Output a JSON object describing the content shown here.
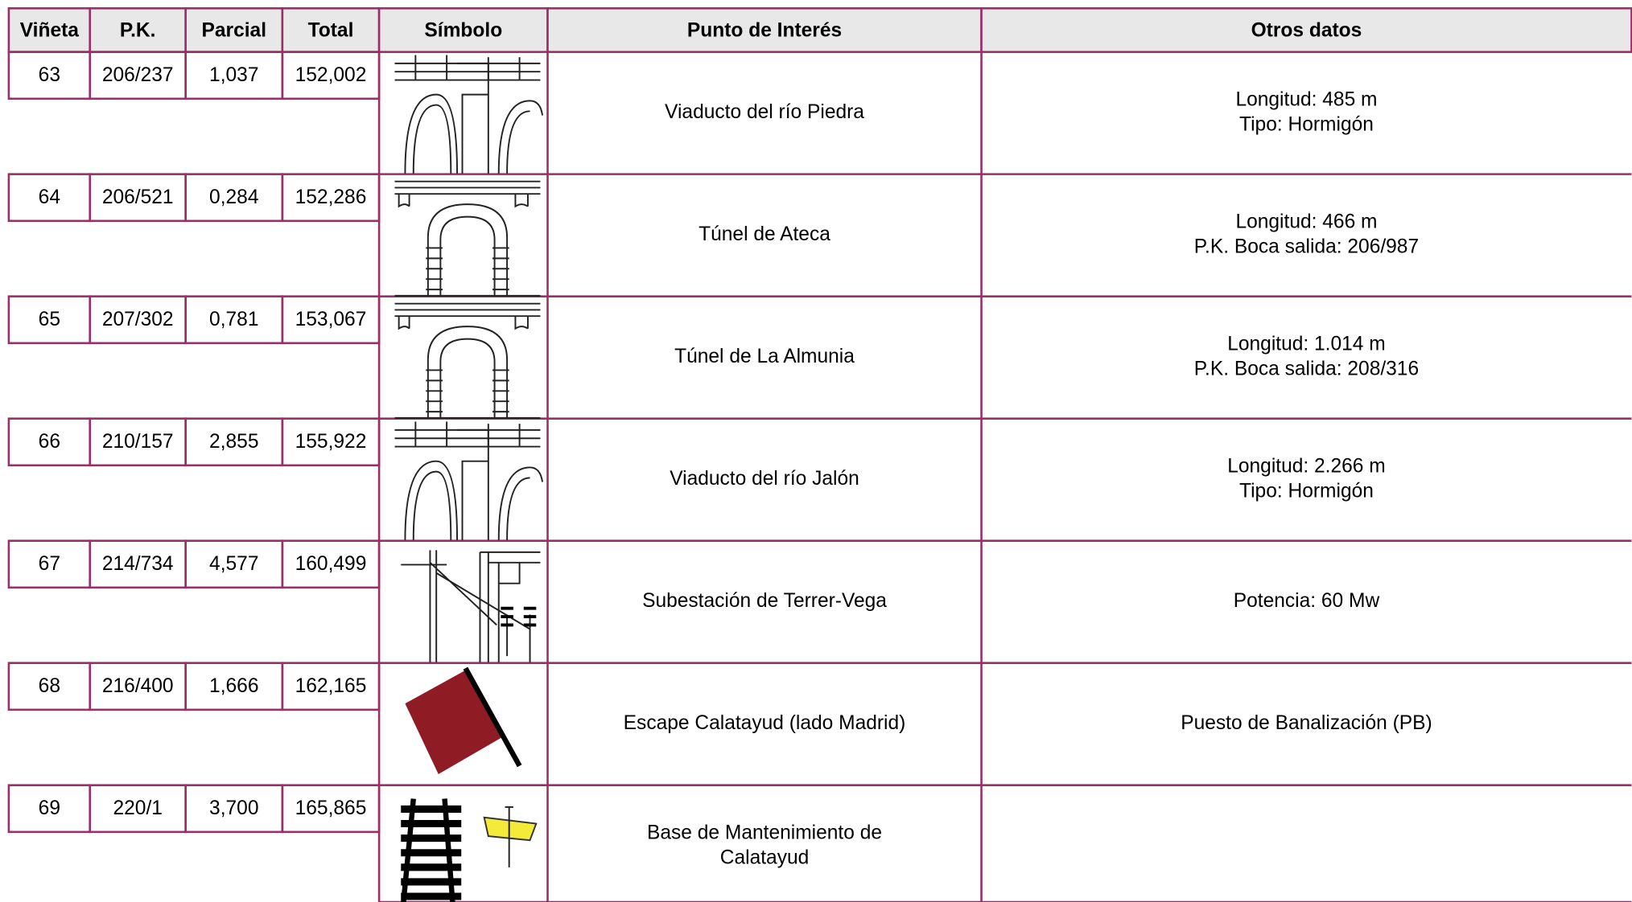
{
  "table": {
    "header": [
      "Viñeta",
      "P.K.",
      "Parcial",
      "Total",
      "Símbolo",
      "Punto de Interés",
      "Otros datos"
    ],
    "rows": [
      {
        "vineta": "63",
        "pk": "206/237",
        "parcial": "1,037",
        "total": "152,002",
        "punto": [
          "Viaducto del río Piedra"
        ],
        "otros": [
          "Longitud: 485 m",
          "Tipo: Hormigón"
        ]
      },
      {
        "vineta": "64",
        "pk": "206/521",
        "parcial": "0,284",
        "total": "152,286",
        "punto": [
          "Túnel de Ateca"
        ],
        "otros": [
          "Longitud: 466 m",
          "P.K. Boca salida: 206/987"
        ]
      },
      {
        "vineta": "65",
        "pk": "207/302",
        "parcial": "0,781",
        "total": "153,067",
        "punto": [
          "Túnel de La Almunia"
        ],
        "otros": [
          "Longitud: 1.014 m",
          "P.K. Boca salida: 208/316"
        ]
      },
      {
        "vineta": "66",
        "pk": "210/157",
        "parcial": "2,855",
        "total": "155,922",
        "punto": [
          "Viaducto del río Jalón"
        ],
        "otros": [
          "Longitud: 2.266 m",
          "Tipo: Hormigón"
        ]
      },
      {
        "vineta": "67",
        "pk": "214/734",
        "parcial": "4,577",
        "total": "160,499",
        "punto": [
          "Subestación de Terrer-Vega"
        ],
        "otros": [
          "Potencia: 60 Mw"
        ]
      },
      {
        "vineta": "68",
        "pk": "216/400",
        "parcial": "1,666",
        "total": "162,165",
        "punto": [
          "Escape Calatayud (lado Madrid)"
        ],
        "otros": [
          "Puesto de Banalización (PB)"
        ]
      },
      {
        "vineta": "69",
        "pk": "220/1",
        "parcial": "3,700",
        "total": "165,865",
        "punto": [
          "Base de Mantenimiento de",
          "Calatayud"
        ],
        "otros": []
      }
    ]
  }
}
